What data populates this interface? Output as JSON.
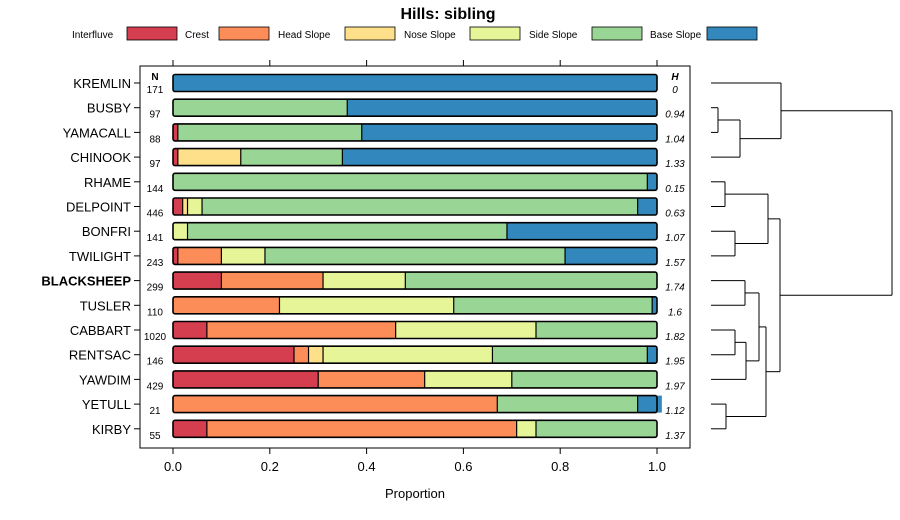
{
  "chart_data": {
    "type": "bar",
    "orientation": "horizontal",
    "stacked": true,
    "title": "Hills: sibling",
    "xlabel": "Proportion",
    "xlim": [
      0,
      1
    ],
    "xticks": [
      "0.0",
      "0.2",
      "0.4",
      "0.6",
      "0.8",
      "1.0"
    ],
    "n_header": "N",
    "h_header": "H",
    "legend": {
      "position": "top",
      "entries": [
        {
          "name": "Interfluve",
          "color": "#d53e4f"
        },
        {
          "name": "Crest",
          "color": "#fc8d59"
        },
        {
          "name": "Head Slope",
          "color": "#fee08b"
        },
        {
          "name": "Nose Slope",
          "color": "#e6f598"
        },
        {
          "name": "Side Slope",
          "color": "#99d594"
        },
        {
          "name": "Base Slope",
          "color": "#3288bd"
        }
      ]
    },
    "highlight": "BLACKSHEEP",
    "rows": [
      {
        "name": "KREMLIN",
        "n": "171",
        "h": "0",
        "values": [
          0,
          0,
          0,
          0,
          0,
          1.0
        ]
      },
      {
        "name": "BUSBY",
        "n": "97",
        "h": "0.94",
        "values": [
          0,
          0,
          0,
          0,
          0.36,
          0.64
        ]
      },
      {
        "name": "YAMACALL",
        "n": "88",
        "h": "1.04",
        "values": [
          0.01,
          0,
          0,
          0,
          0.38,
          0.61
        ]
      },
      {
        "name": "CHINOOK",
        "n": "97",
        "h": "1.33",
        "values": [
          0.01,
          0,
          0.13,
          0,
          0.21,
          0.65
        ]
      },
      {
        "name": "RHAME",
        "n": "144",
        "h": "0.15",
        "values": [
          0,
          0,
          0,
          0,
          0.98,
          0.02
        ]
      },
      {
        "name": "DELPOINT",
        "n": "446",
        "h": "0.63",
        "values": [
          0.02,
          0,
          0.01,
          0.03,
          0.9,
          0.04
        ]
      },
      {
        "name": "BONFRI",
        "n": "141",
        "h": "1.07",
        "values": [
          0,
          0,
          0,
          0.03,
          0.66,
          0.31
        ]
      },
      {
        "name": "TWILIGHT",
        "n": "243",
        "h": "1.57",
        "values": [
          0.01,
          0.09,
          0,
          0.09,
          0.62,
          0.19
        ]
      },
      {
        "name": "BLACKSHEEP",
        "n": "299",
        "h": "1.74",
        "values": [
          0.1,
          0.21,
          0,
          0.17,
          0.52,
          0
        ]
      },
      {
        "name": "TUSLER",
        "n": "110",
        "h": "1.6",
        "values": [
          0,
          0.22,
          0,
          0.36,
          0.41,
          0.01
        ]
      },
      {
        "name": "CABBART",
        "n": "1020",
        "h": "1.82",
        "values": [
          0.07,
          0.39,
          0,
          0.29,
          0.25,
          0
        ]
      },
      {
        "name": "RENTSAC",
        "n": "146",
        "h": "1.95",
        "values": [
          0.25,
          0.03,
          0.03,
          0.35,
          0.32,
          0.02
        ]
      },
      {
        "name": "YAWDIM",
        "n": "429",
        "h": "1.97",
        "values": [
          0.3,
          0.22,
          0,
          0.18,
          0.3,
          0
        ]
      },
      {
        "name": "YETULL",
        "n": "21",
        "h": "1.12",
        "values": [
          0,
          0.67,
          0,
          0,
          0.29,
          0.05
        ]
      },
      {
        "name": "KIRBY",
        "n": "55",
        "h": "1.37",
        "values": [
          0.07,
          0.64,
          0,
          0.04,
          0.25,
          0
        ]
      }
    ]
  }
}
